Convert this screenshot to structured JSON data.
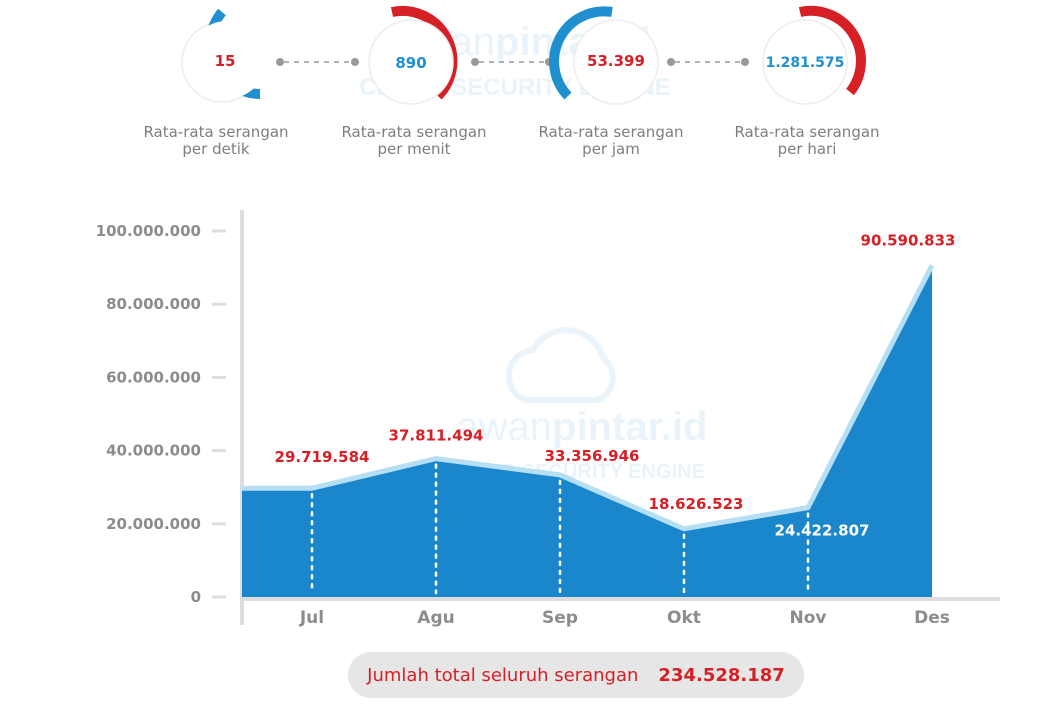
{
  "colors": {
    "red": "#d62026",
    "blue": "#1f8fcf",
    "area": "#1a86cc",
    "area_edge": "#b6dff4",
    "axis": "#dddddd",
    "text_gray": "#8c8c8c"
  },
  "stats": [
    {
      "value": "15",
      "label_line1": "Rata-rata serangan",
      "label_line2": "per detik",
      "value_color": "#d62026"
    },
    {
      "value": "890",
      "label_line1": "Rata-rata serangan",
      "label_line2": "per menit",
      "value_color": "#1f8fcf"
    },
    {
      "value": "53.399",
      "label_line1": "Rata-rata serangan",
      "label_line2": "per jam",
      "value_color": "#d62026"
    },
    {
      "value": "1.281.575",
      "label_line1": "Rata-rata serangan",
      "label_line2": "per hari",
      "value_color": "#1f8fcf"
    }
  ],
  "watermark": {
    "brand_a": "awan",
    "brand_b": "pintar.id",
    "tagline": "CLOUD SECURITY ENGINE"
  },
  "chart_data": {
    "type": "area",
    "categories": [
      "Jul",
      "Agu",
      "Sep",
      "Okt",
      "Nov",
      "Des"
    ],
    "values": [
      29719584,
      37811494,
      33356946,
      18626523,
      24422807,
      90590833
    ],
    "value_labels": [
      "29.719.584",
      "37.811.494",
      "33.356.946",
      "18.626.523",
      "24.422.807",
      "90.590.833"
    ],
    "y_ticks": [
      "0",
      "20.000.000",
      "40.000.000",
      "60.000.000",
      "80.000.000",
      "100.000.000"
    ],
    "ylim": [
      0,
      100000000
    ],
    "title": "",
    "xlabel": "",
    "ylabel": "",
    "grid": false
  },
  "total": {
    "label": "Jumlah total seluruh serangan",
    "value": "234.528.187"
  }
}
